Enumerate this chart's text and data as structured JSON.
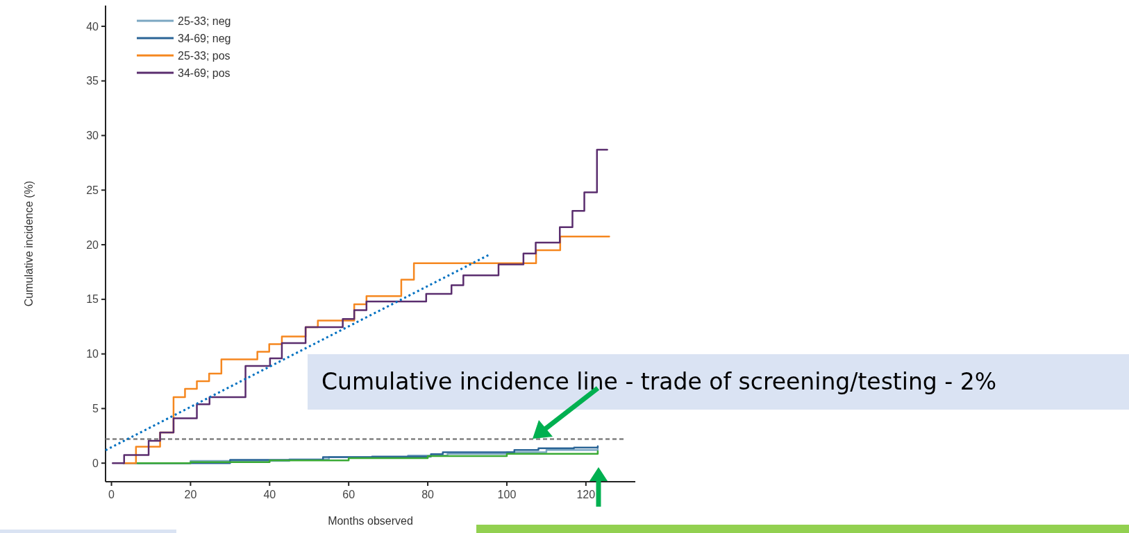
{
  "chart_data": {
    "type": "step",
    "xlabel": "Months observed",
    "ylabel": "Cumulative incidence (%)",
    "xlim": [
      -1.5,
      132.5
    ],
    "ylim": [
      -1.7,
      41.9
    ],
    "xticks": [
      0,
      20,
      40,
      60,
      80,
      100,
      120
    ],
    "yticks": [
      0,
      5,
      10,
      15,
      20,
      25,
      30,
      35,
      40
    ],
    "legend": "top left",
    "grid": false,
    "series": [
      {
        "name": "25-33; neg",
        "color": "#7ba6c2",
        "x": [
          6,
          20,
          45,
          55,
          75,
          85,
          100,
          110,
          123
        ],
        "values": [
          0,
          0.2,
          0.35,
          0.55,
          0.7,
          0.85,
          1.0,
          1.2,
          1.3
        ]
      },
      {
        "name": "34-69; neg",
        "color": "#2a6496",
        "x": [
          3,
          30,
          53.5,
          65.9,
          80.8,
          83.8,
          101.9,
          108,
          117,
          123
        ],
        "values": [
          0,
          0.3,
          0.55,
          0.6,
          0.82,
          1.0,
          1.2,
          1.36,
          1.43,
          1.55
        ]
      },
      {
        "name": "25-33; pos",
        "color": "#f5871f",
        "x": [
          3.2,
          6.2,
          12.3,
          15.7,
          18.6,
          21.6,
          24.7,
          27.8,
          36.9,
          39.9,
          43.1,
          49.1,
          52.2,
          61.4,
          64.5,
          73.3,
          76.5,
          107.4,
          113.5,
          125.9
        ],
        "values": [
          0,
          1.5,
          2.8,
          6.05,
          6.8,
          7.5,
          8.2,
          9.5,
          10.2,
          10.9,
          11.6,
          12.45,
          13.05,
          14.55,
          15.3,
          16.8,
          18.3,
          19.5,
          20.75,
          20.75
        ]
      },
      {
        "name": "34-69; pos",
        "color": "#5a2d6e",
        "x": [
          0.3,
          3.2,
          9.4,
          12.3,
          15.7,
          21.6,
          24.8,
          33.9,
          40.1,
          43.1,
          49.1,
          58.5,
          61.4,
          64.5,
          79.6,
          86,
          89,
          97.9,
          104.2,
          107.3,
          113.4,
          116.6,
          119.6,
          122.8,
          125.4
        ],
        "values": [
          0,
          0.74,
          2.05,
          2.8,
          4.1,
          5.4,
          6.05,
          8.9,
          9.6,
          11,
          12.45,
          13.2,
          14,
          14.8,
          15.5,
          16.3,
          17.2,
          18.2,
          19.2,
          20.2,
          21.6,
          23.1,
          24.8,
          28.7,
          28.7
        ]
      },
      {
        "type": "step",
        "color": "#3aaa35",
        "x": [
          6.6,
          20,
          40,
          60,
          80,
          100,
          123
        ],
        "values": [
          0,
          0.1,
          0.25,
          0.45,
          0.65,
          0.85,
          1.1
        ]
      },
      {
        "type": "line",
        "color": "#0070c0",
        "line_style": "dotted",
        "x": [
          -1.5,
          95.9
        ],
        "values": [
          1.18,
          19.15
        ]
      }
    ],
    "ref_lines": [
      {
        "axis": "y",
        "value": 2.2,
        "color": "#808080",
        "line_style": "dashed"
      }
    ],
    "annotations": [
      "Cumulative incidence line - trade of screening/testing - 2%"
    ]
  }
}
